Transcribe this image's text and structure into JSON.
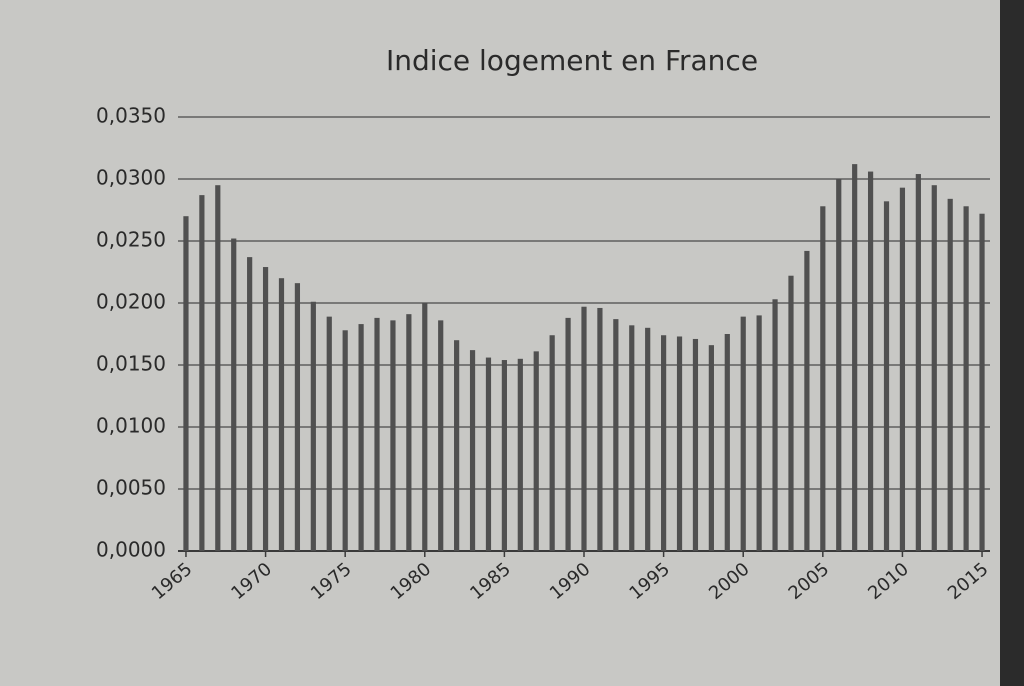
{
  "chart_data": {
    "type": "bar",
    "title": "Indice logement en France",
    "categories": [
      "1965",
      null,
      null,
      null,
      null,
      "1970",
      null,
      null,
      null,
      null,
      "1975",
      null,
      null,
      null,
      null,
      "1980",
      null,
      null,
      null,
      null,
      "1985",
      null,
      null,
      null,
      null,
      "1990",
      null,
      null,
      null,
      null,
      "1995",
      null,
      null,
      null,
      null,
      "2000",
      null,
      null,
      null,
      null,
      "2005",
      null,
      null,
      null,
      null,
      "2010",
      null,
      null,
      null,
      null,
      "2015"
    ],
    "values": [
      0.027,
      0.0287,
      0.0295,
      0.0252,
      0.0237,
      0.0229,
      0.022,
      0.0216,
      0.0201,
      0.0189,
      0.0178,
      0.0183,
      0.0188,
      0.0186,
      0.0191,
      0.02,
      0.0186,
      0.017,
      0.0162,
      0.0156,
      0.0154,
      0.0155,
      0.0161,
      0.0174,
      0.0188,
      0.0197,
      0.0196,
      0.0187,
      0.0182,
      0.018,
      0.0174,
      0.0173,
      0.0171,
      0.0166,
      0.0175,
      0.0189,
      0.019,
      0.0203,
      0.0222,
      0.0242,
      0.0278,
      0.03,
      0.0312,
      0.0306,
      0.0282,
      0.0293,
      0.0304,
      0.0295,
      0.0284,
      0.0278,
      0.0272
    ],
    "color": "#505050",
    "ylim": [
      0,
      0.035
    ],
    "yticks": [
      {
        "value": 0,
        "label": "0,0000"
      },
      {
        "value": 0.005,
        "label": "0,0050"
      },
      {
        "value": 0.01,
        "label": "0,0100"
      },
      {
        "value": 0.015,
        "label": "0,0150"
      },
      {
        "value": 0.02,
        "label": "0,0200"
      },
      {
        "value": 0.025,
        "label": "0,0250"
      },
      {
        "value": 0.03,
        "label": "0,0300"
      },
      {
        "value": 0.035,
        "label": "0,0350"
      }
    ],
    "grid": true
  }
}
